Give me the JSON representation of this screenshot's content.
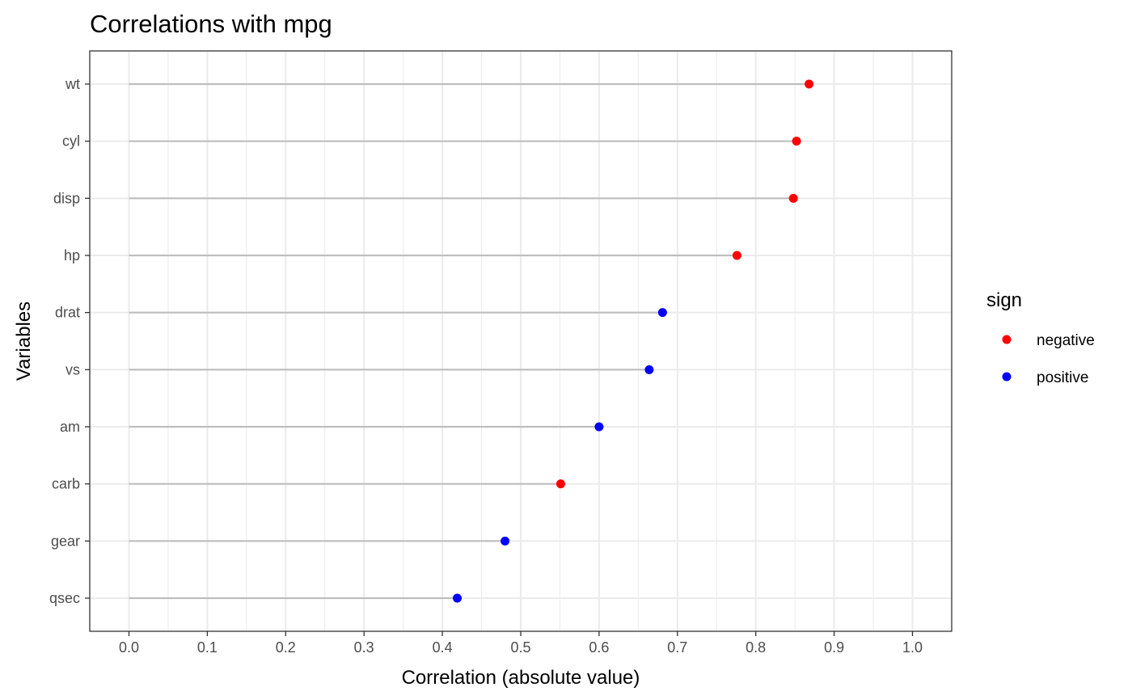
{
  "chart_data": {
    "type": "scatter",
    "title": "Correlations with mpg",
    "xlabel": "Correlation (absolute value)",
    "ylabel": "Variables",
    "xlim": [
      0,
      1
    ],
    "x_ticks": [
      "0.0",
      "0.1",
      "0.2",
      "0.3",
      "0.4",
      "0.5",
      "0.6",
      "0.7",
      "0.8",
      "0.9",
      "1.0"
    ],
    "categories": [
      "wt",
      "cyl",
      "disp",
      "hp",
      "drat",
      "vs",
      "am",
      "carb",
      "gear",
      "qsec"
    ],
    "values": [
      0.868,
      0.852,
      0.848,
      0.776,
      0.681,
      0.664,
      0.6,
      0.551,
      0.48,
      0.419
    ],
    "signs": [
      "negative",
      "negative",
      "negative",
      "negative",
      "positive",
      "positive",
      "positive",
      "negative",
      "positive",
      "positive"
    ],
    "legend": {
      "title": "sign",
      "placement": "right",
      "entries": [
        {
          "label": "negative",
          "color": "#ff0000"
        },
        {
          "label": "positive",
          "color": "#0000ff"
        }
      ]
    },
    "grid": true,
    "segment_color": "#bebebe"
  }
}
